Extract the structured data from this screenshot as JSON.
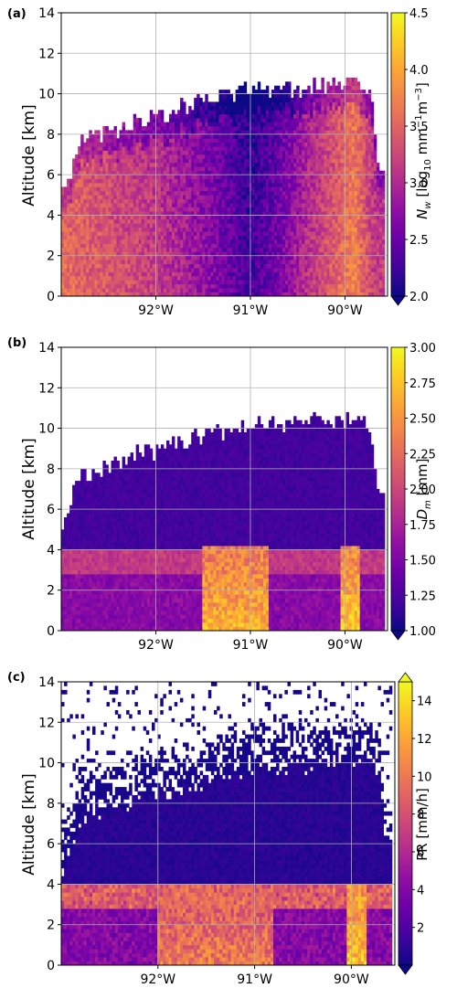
{
  "chart_data": [
    {
      "type": "heatmap",
      "panel_label": "(a)",
      "ylabel": "Altitude [km]",
      "ylim": [
        0,
        14
      ],
      "yticks": [
        "0",
        "2",
        "4",
        "6",
        "8",
        "10",
        "12",
        "14"
      ],
      "xlim": [
        -93.0,
        -89.55
      ],
      "xticks": [
        {
          "value": -92,
          "label": "92°W"
        },
        {
          "value": -91,
          "label": "91°W"
        },
        {
          "value": -90,
          "label": "90°W"
        }
      ],
      "grid": true,
      "colorbar": {
        "label_text": "[log",
        "label_var": "N",
        "label_var_sub": "w",
        "label_sub": "10",
        "label_unit": " mm",
        "label_sup1": "−1",
        "label_unit2": "m",
        "label_sup2": "−3",
        "label_close": "]",
        "min": 2.0,
        "max": 4.5,
        "ticks": [
          "2.0",
          "2.5",
          "3.0",
          "3.5",
          "4.0",
          "4.5"
        ],
        "colormap": "plasma",
        "extend": "min"
      },
      "field": "Nw",
      "top_height_km": [
        {
          "lon": -93.0,
          "h": 4.9
        },
        {
          "lon": -92.8,
          "h": 7.5
        },
        {
          "lon": -92.5,
          "h": 8.0
        },
        {
          "lon": -92.2,
          "h": 8.6
        },
        {
          "lon": -91.9,
          "h": 8.9
        },
        {
          "lon": -91.5,
          "h": 9.6
        },
        {
          "lon": -91.2,
          "h": 9.8
        },
        {
          "lon": -91.0,
          "h": 10.2
        },
        {
          "lon": -90.7,
          "h": 10.0
        },
        {
          "lon": -90.4,
          "h": 10.3
        },
        {
          "lon": -90.0,
          "h": 10.4
        },
        {
          "lon": -89.8,
          "h": 10.2
        },
        {
          "lon": -89.7,
          "h": 9.2
        },
        {
          "lon": -89.65,
          "h": 6.3
        }
      ],
      "mean_value_along_track": [
        {
          "lon": -93.0,
          "v": 3.6
        },
        {
          "lon": -92.5,
          "v": 3.4
        },
        {
          "lon": -92.0,
          "v": 3.2
        },
        {
          "lon": -91.5,
          "v": 2.8
        },
        {
          "lon": -91.2,
          "v": 2.5
        },
        {
          "lon": -91.0,
          "v": 2.3
        },
        {
          "lon": -90.7,
          "v": 2.6
        },
        {
          "lon": -90.4,
          "v": 3.1
        },
        {
          "lon": -90.1,
          "v": 3.5
        },
        {
          "lon": -89.9,
          "v": 3.8
        },
        {
          "lon": -89.7,
          "v": 3.2
        }
      ]
    },
    {
      "type": "heatmap",
      "panel_label": "(b)",
      "ylabel": "Altitude [km]",
      "ylim": [
        0,
        14
      ],
      "yticks": [
        "0",
        "2",
        "4",
        "6",
        "8",
        "10",
        "12",
        "14"
      ],
      "xlim": [
        -93.0,
        -89.55
      ],
      "xticks": [
        {
          "value": -92,
          "label": "92°W"
        },
        {
          "value": -91,
          "label": "91°W"
        },
        {
          "value": -90,
          "label": "90°W"
        }
      ],
      "grid": true,
      "colorbar": {
        "label_var": "D",
        "label_var_sub": "m",
        "label_text": "[mm]",
        "min": 1.0,
        "max": 3.0,
        "ticks": [
          "1.00",
          "1.25",
          "1.50",
          "1.75",
          "2.00",
          "2.25",
          "2.50",
          "2.75",
          "3.00"
        ],
        "colormap": "plasma",
        "extend": "min"
      },
      "field": "Dm",
      "melting_layer_km": [
        2.8,
        3.9
      ],
      "peak_regions": [
        {
          "lon_from": -91.5,
          "lon_to": -90.8,
          "max_value": 2.9
        },
        {
          "lon_from": -90.05,
          "lon_to": -89.85,
          "max_value": 3.0
        }
      ]
    },
    {
      "type": "heatmap",
      "panel_label": "(c)",
      "ylabel": "Altitude [km]",
      "ylim": [
        0,
        14
      ],
      "yticks": [
        "0",
        "2",
        "4",
        "6",
        "8",
        "10",
        "12",
        "14"
      ],
      "xlim": [
        -93.0,
        -89.55
      ],
      "xticks": [
        {
          "value": -92,
          "label": "92°W"
        },
        {
          "value": -91,
          "label": "91°W"
        },
        {
          "value": -90,
          "label": "90°W"
        }
      ],
      "grid": true,
      "colorbar": {
        "label_text": "PR [mm/h]",
        "min": 0,
        "max": 15,
        "ticks": [
          "2",
          "4",
          "6",
          "8",
          "10",
          "12",
          "14"
        ],
        "colormap": "plasma",
        "extend": "both"
      },
      "field": "PR",
      "melting_layer_km": [
        2.6,
        3.9
      ],
      "peak_regions": [
        {
          "lon_from": -92.0,
          "lon_to": -90.8,
          "max_value": 12
        },
        {
          "lon_from": -90.05,
          "lon_to": -89.85,
          "max_value": 15
        }
      ]
    }
  ]
}
